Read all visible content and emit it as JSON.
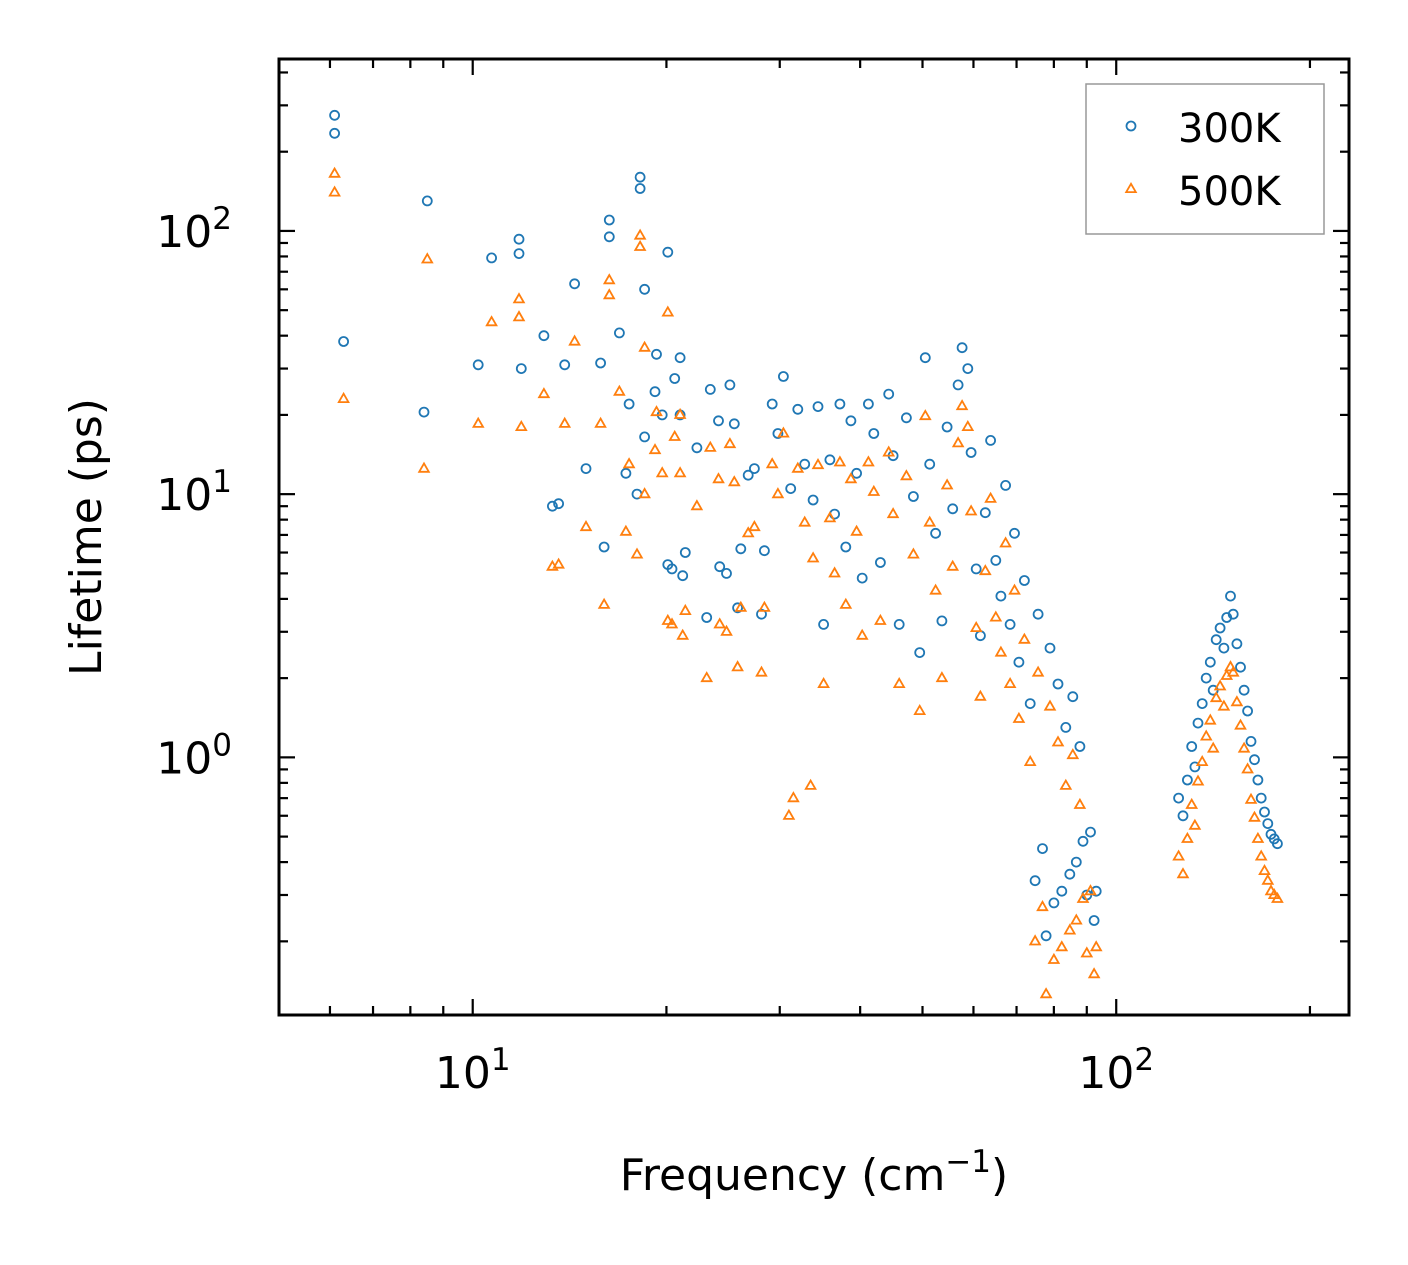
{
  "chart_data": {
    "type": "scatter",
    "xlabel": "Frequency (cm",
    "xlabel_sup": "−1",
    "xlabel_close": ")",
    "ylabel": "Lifetime (ps)",
    "xscale": "log",
    "yscale": "log",
    "xlim": [
      5.0,
      230.0
    ],
    "ylim": [
      0.105,
      450.0
    ],
    "x_ticks": [
      {
        "base": "10",
        "exp": "1",
        "value": 10
      },
      {
        "base": "10",
        "exp": "2",
        "value": 100
      }
    ],
    "y_ticks": [
      {
        "base": "10",
        "exp": "0",
        "value": 1
      },
      {
        "base": "10",
        "exp": "1",
        "value": 10
      },
      {
        "base": "10",
        "exp": "2",
        "value": 100
      }
    ],
    "legend": {
      "position": "top-right"
    },
    "series": [
      {
        "name": "300K",
        "marker": "circle",
        "color": "#1f77b4",
        "points": [
          [
            6.1,
            275
          ],
          [
            6.1,
            235
          ],
          [
            6.3,
            38
          ],
          [
            8.5,
            130
          ],
          [
            8.4,
            20.5
          ],
          [
            10.2,
            31
          ],
          [
            10.7,
            79
          ],
          [
            11.8,
            93
          ],
          [
            11.8,
            82
          ],
          [
            11.9,
            30
          ],
          [
            12.9,
            40
          ],
          [
            13.3,
            9
          ],
          [
            13.6,
            9.2
          ],
          [
            13.9,
            31
          ],
          [
            14.4,
            63
          ],
          [
            15.0,
            12.5
          ],
          [
            15.8,
            31.5
          ],
          [
            16.0,
            6.3
          ],
          [
            16.3,
            110
          ],
          [
            16.3,
            95
          ],
          [
            16.9,
            41
          ],
          [
            17.3,
            12
          ],
          [
            17.5,
            22
          ],
          [
            18.0,
            10
          ],
          [
            18.2,
            160
          ],
          [
            18.2,
            145
          ],
          [
            18.5,
            60
          ],
          [
            18.5,
            16.5
          ],
          [
            19.2,
            24.5
          ],
          [
            19.3,
            34
          ],
          [
            19.7,
            20
          ],
          [
            20.1,
            83
          ],
          [
            20.1,
            5.4
          ],
          [
            20.4,
            5.2
          ],
          [
            20.6,
            27.5
          ],
          [
            21.0,
            33
          ],
          [
            21.0,
            20
          ],
          [
            21.2,
            4.9
          ],
          [
            21.4,
            6
          ],
          [
            22.3,
            15
          ],
          [
            23.1,
            3.4
          ],
          [
            23.4,
            25
          ],
          [
            24.1,
            19
          ],
          [
            24.2,
            5.3
          ],
          [
            24.8,
            5
          ],
          [
            25.1,
            26
          ],
          [
            25.5,
            18.5
          ],
          [
            25.8,
            3.7
          ],
          [
            26.1,
            6.2
          ],
          [
            26.8,
            11.8
          ],
          [
            27.4,
            12.5
          ],
          [
            28.1,
            3.5
          ],
          [
            28.4,
            6.1
          ],
          [
            29.2,
            22
          ],
          [
            29.8,
            17
          ],
          [
            30.4,
            28
          ],
          [
            31.2,
            10.5
          ],
          [
            32.0,
            21
          ],
          [
            32.8,
            13
          ],
          [
            33.8,
            9.5
          ],
          [
            34.4,
            21.5
          ],
          [
            35.1,
            3.2
          ],
          [
            35.9,
            13.5
          ],
          [
            36.5,
            8.4
          ],
          [
            37.2,
            22
          ],
          [
            38.0,
            6.3
          ],
          [
            38.7,
            19
          ],
          [
            39.5,
            12
          ],
          [
            40.3,
            4.8
          ],
          [
            41.2,
            22
          ],
          [
            42.0,
            17
          ],
          [
            43.0,
            5.5
          ],
          [
            44.3,
            24
          ],
          [
            45.0,
            14
          ],
          [
            46.0,
            3.2
          ],
          [
            47.2,
            19.5
          ],
          [
            48.4,
            9.8
          ],
          [
            49.5,
            2.5
          ],
          [
            50.5,
            33
          ],
          [
            51.3,
            13
          ],
          [
            52.4,
            7.1
          ],
          [
            53.6,
            3.3
          ],
          [
            54.6,
            18
          ],
          [
            55.7,
            8.8
          ],
          [
            56.8,
            26
          ],
          [
            57.6,
            36
          ],
          [
            58.8,
            30
          ],
          [
            59.5,
            14.4
          ],
          [
            60.6,
            5.2
          ],
          [
            61.5,
            2.9
          ],
          [
            62.6,
            8.5
          ],
          [
            63.8,
            16
          ],
          [
            65.0,
            5.6
          ],
          [
            66.2,
            4.1
          ],
          [
            67.3,
            10.8
          ],
          [
            68.4,
            3.2
          ],
          [
            69.5,
            7.1
          ],
          [
            70.6,
            2.3
          ],
          [
            72.0,
            4.7
          ],
          [
            73.5,
            1.6
          ],
          [
            74.8,
            0.34
          ],
          [
            75.6,
            3.5
          ],
          [
            76.8,
            0.45
          ],
          [
            77.8,
            0.21
          ],
          [
            78.9,
            2.6
          ],
          [
            80.0,
            0.28
          ],
          [
            81.2,
            1.9
          ],
          [
            82.3,
            0.31
          ],
          [
            83.5,
            1.3
          ],
          [
            84.7,
            0.36
          ],
          [
            85.6,
            1.7
          ],
          [
            86.7,
            0.4
          ],
          [
            87.8,
            1.1
          ],
          [
            88.8,
            0.48
          ],
          [
            90.0,
            0.3
          ],
          [
            91.2,
            0.52
          ],
          [
            92.4,
            0.24
          ],
          [
            93.1,
            0.31
          ],
          [
            125.0,
            0.7
          ],
          [
            127.0,
            0.6
          ],
          [
            129.0,
            0.82
          ],
          [
            131.0,
            1.1
          ],
          [
            132.5,
            0.92
          ],
          [
            134.0,
            1.35
          ],
          [
            136.0,
            1.6
          ],
          [
            138.0,
            2.0
          ],
          [
            140.0,
            2.3
          ],
          [
            141.5,
            1.8
          ],
          [
            143.0,
            2.8
          ],
          [
            145.0,
            3.1
          ],
          [
            147.0,
            2.6
          ],
          [
            148.5,
            3.4
          ],
          [
            150.5,
            4.1
          ],
          [
            152.0,
            3.5
          ],
          [
            154.0,
            2.7
          ],
          [
            156.0,
            2.2
          ],
          [
            158.0,
            1.8
          ],
          [
            160.0,
            1.5
          ],
          [
            162.0,
            1.15
          ],
          [
            164.0,
            0.98
          ],
          [
            166.0,
            0.82
          ],
          [
            168.0,
            0.7
          ],
          [
            170.0,
            0.62
          ],
          [
            172.0,
            0.56
          ],
          [
            174.0,
            0.51
          ],
          [
            176.0,
            0.49
          ],
          [
            178.0,
            0.47
          ]
        ]
      },
      {
        "name": "500K",
        "marker": "triangle",
        "color": "#ff7f0e",
        "points": [
          [
            6.1,
            165
          ],
          [
            6.1,
            140
          ],
          [
            6.3,
            23
          ],
          [
            8.5,
            78
          ],
          [
            8.4,
            12.5
          ],
          [
            10.2,
            18.5
          ],
          [
            10.7,
            45
          ],
          [
            11.8,
            55
          ],
          [
            11.8,
            47
          ],
          [
            11.9,
            18
          ],
          [
            12.9,
            24
          ],
          [
            13.3,
            5.3
          ],
          [
            13.6,
            5.4
          ],
          [
            13.9,
            18.5
          ],
          [
            14.4,
            38
          ],
          [
            15.0,
            7.5
          ],
          [
            15.8,
            18.5
          ],
          [
            16.0,
            3.8
          ],
          [
            16.3,
            65
          ],
          [
            16.3,
            57
          ],
          [
            16.9,
            24.5
          ],
          [
            17.3,
            7.2
          ],
          [
            17.5,
            13
          ],
          [
            18.0,
            5.9
          ],
          [
            18.2,
            96
          ],
          [
            18.2,
            87
          ],
          [
            18.5,
            36
          ],
          [
            18.5,
            10
          ],
          [
            19.2,
            14.7
          ],
          [
            19.3,
            20.5
          ],
          [
            19.7,
            12
          ],
          [
            20.1,
            49
          ],
          [
            20.1,
            3.3
          ],
          [
            20.4,
            3.2
          ],
          [
            20.6,
            16.5
          ],
          [
            21.0,
            20
          ],
          [
            21.0,
            12
          ],
          [
            21.2,
            2.9
          ],
          [
            21.4,
            3.6
          ],
          [
            22.3,
            9
          ],
          [
            23.1,
            2.0
          ],
          [
            23.4,
            15
          ],
          [
            24.1,
            11.4
          ],
          [
            24.2,
            3.2
          ],
          [
            24.8,
            3.0
          ],
          [
            25.1,
            15.5
          ],
          [
            25.5,
            11.1
          ],
          [
            25.8,
            2.2
          ],
          [
            26.1,
            3.7
          ],
          [
            26.8,
            7.1
          ],
          [
            27.4,
            7.5
          ],
          [
            28.1,
            2.1
          ],
          [
            28.4,
            3.7
          ],
          [
            29.2,
            13
          ],
          [
            29.8,
            10
          ],
          [
            30.4,
            17
          ],
          [
            31.0,
            0.6
          ],
          [
            31.5,
            0.7
          ],
          [
            32.0,
            12.5
          ],
          [
            32.8,
            7.8
          ],
          [
            33.5,
            0.78
          ],
          [
            33.8,
            5.7
          ],
          [
            34.4,
            12.9
          ],
          [
            35.1,
            1.9
          ],
          [
            35.9,
            8.1
          ],
          [
            36.5,
            5.0
          ],
          [
            37.2,
            13.2
          ],
          [
            38.0,
            3.8
          ],
          [
            38.7,
            11.4
          ],
          [
            39.5,
            7.2
          ],
          [
            40.3,
            2.9
          ],
          [
            41.2,
            13.2
          ],
          [
            42.0,
            10.2
          ],
          [
            43.0,
            3.3
          ],
          [
            44.3,
            14.4
          ],
          [
            45.0,
            8.4
          ],
          [
            46.0,
            1.9
          ],
          [
            47.2,
            11.7
          ],
          [
            48.4,
            5.9
          ],
          [
            49.5,
            1.5
          ],
          [
            50.5,
            19.8
          ],
          [
            51.3,
            7.8
          ],
          [
            52.4,
            4.3
          ],
          [
            53.6,
            2.0
          ],
          [
            54.6,
            10.8
          ],
          [
            55.7,
            5.3
          ],
          [
            56.8,
            15.6
          ],
          [
            57.6,
            21.6
          ],
          [
            58.8,
            18.0
          ],
          [
            59.5,
            8.6
          ],
          [
            60.6,
            3.1
          ],
          [
            61.5,
            1.7
          ],
          [
            62.6,
            5.1
          ],
          [
            63.8,
            9.6
          ],
          [
            65.0,
            3.4
          ],
          [
            66.2,
            2.5
          ],
          [
            67.3,
            6.5
          ],
          [
            68.4,
            1.9
          ],
          [
            69.5,
            4.3
          ],
          [
            70.6,
            1.4
          ],
          [
            72.0,
            2.8
          ],
          [
            73.5,
            0.96
          ],
          [
            74.8,
            0.2
          ],
          [
            75.6,
            2.1
          ],
          [
            76.8,
            0.27
          ],
          [
            77.8,
            0.126
          ],
          [
            78.9,
            1.56
          ],
          [
            80.0,
            0.17
          ],
          [
            81.2,
            1.14
          ],
          [
            82.3,
            0.19
          ],
          [
            83.5,
            0.78
          ],
          [
            84.7,
            0.22
          ],
          [
            85.6,
            1.02
          ],
          [
            86.7,
            0.24
          ],
          [
            87.8,
            0.66
          ],
          [
            88.8,
            0.29
          ],
          [
            90.0,
            0.18
          ],
          [
            91.2,
            0.31
          ],
          [
            92.4,
            0.15
          ],
          [
            93.1,
            0.19
          ],
          [
            125.0,
            0.42
          ],
          [
            127.0,
            0.36
          ],
          [
            129.0,
            0.49
          ],
          [
            131.0,
            0.66
          ],
          [
            132.5,
            0.55
          ],
          [
            134.0,
            0.81
          ],
          [
            136.0,
            0.96
          ],
          [
            138.0,
            1.2
          ],
          [
            140.0,
            1.38
          ],
          [
            141.5,
            1.08
          ],
          [
            143.0,
            1.68
          ],
          [
            145.0,
            1.86
          ],
          [
            147.0,
            1.56
          ],
          [
            148.5,
            2.04
          ],
          [
            150.5,
            2.2
          ],
          [
            152.0,
            2.1
          ],
          [
            154.0,
            1.62
          ],
          [
            156.0,
            1.32
          ],
          [
            158.0,
            1.08
          ],
          [
            160.0,
            0.9
          ],
          [
            162.0,
            0.69
          ],
          [
            164.0,
            0.59
          ],
          [
            166.0,
            0.49
          ],
          [
            168.0,
            0.42
          ],
          [
            170.0,
            0.37
          ],
          [
            172.0,
            0.34
          ],
          [
            174.0,
            0.31
          ],
          [
            176.0,
            0.3
          ],
          [
            178.0,
            0.29
          ]
        ]
      }
    ]
  }
}
